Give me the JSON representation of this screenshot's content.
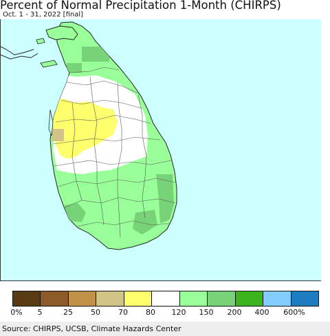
{
  "title": "Percent of Normal Precipitation 1-Month (CHIRPS)",
  "subtitle": "Oct. 1 - 31, 2022 [final]",
  "map": {
    "region": "Sri Lanka",
    "ocean_color": "#ccffff",
    "land_color": "#99ff99"
  },
  "legend": {
    "colors": [
      "#5a3c14",
      "#8c5a28",
      "#c09146",
      "#d2c387",
      "#ffff6e",
      "#ffffff",
      "#99ff99",
      "#78d278",
      "#3cb41e",
      "#82cdff",
      "#1e7dbe"
    ],
    "labels": [
      "0%",
      "5",
      "25",
      "50",
      "70",
      "80",
      "120",
      "150",
      "200",
      "400",
      "600%"
    ]
  },
  "source": "Source: CHIRPS, UCSB, Climate Hazards Center"
}
